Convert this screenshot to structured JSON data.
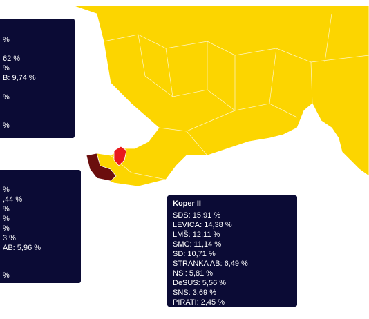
{
  "tooltips": [
    {
      "lines": [
        "%",
        "62 %",
        "%",
        "B: 9,74 %",
        "%",
        "%"
      ]
    },
    {
      "lines": [
        "%",
        ",44 %",
        "%",
        "%",
        "%",
        "3 %",
        "AB: 5,96 %",
        "%"
      ]
    }
  ],
  "koper": {
    "title": "Koper II",
    "rows": [
      "SDS: 15,91 %",
      "LEVICA: 14,38 %",
      "LMŠ: 12,11 %",
      "SMC: 11,14 %",
      "SD: 10,71 %",
      "STRANKA AB: 6,49 %",
      "NSi: 5,81 %",
      "DeSUS: 5,56 %",
      "SNS: 3,69 %",
      "PIRATI: 2,45 %"
    ]
  }
}
